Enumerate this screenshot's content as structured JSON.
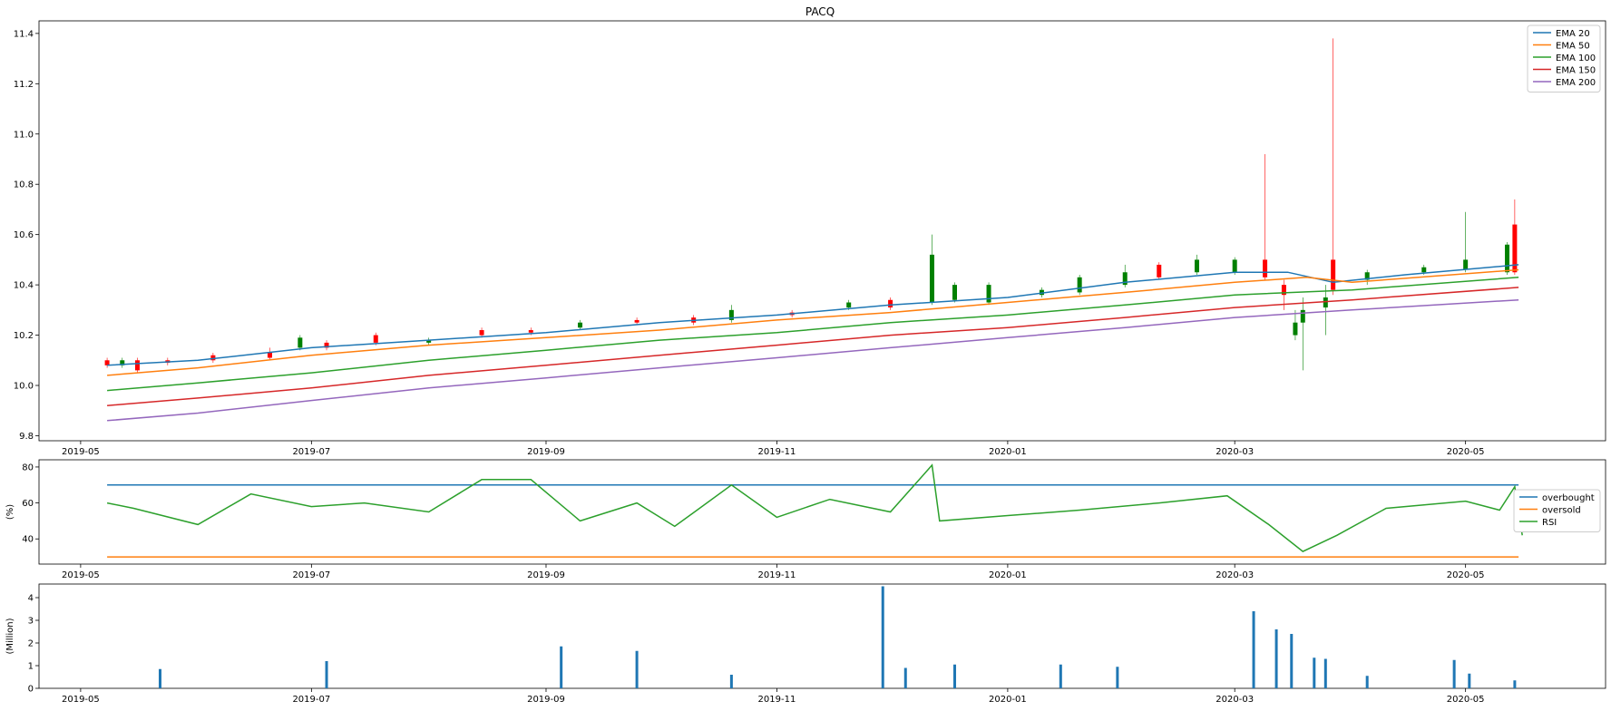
{
  "title": "PACQ",
  "colors": {
    "ema20": "#1f77b4",
    "ema50": "#ff7f0e",
    "ema100": "#2ca02c",
    "ema150": "#d62728",
    "ema200": "#9467bd",
    "overbought": "#1f77b4",
    "oversold": "#ff7f0e",
    "rsi": "#2ca02c",
    "up": "#008000",
    "down": "#ff0000",
    "volume": "#1f77b4"
  },
  "chart_data": [
    {
      "type": "candlestick",
      "title": "PACQ",
      "xlabel": "",
      "ylabel": "",
      "x_range": [
        "2019-04-20",
        "2020-06-07"
      ],
      "ylim": [
        9.78,
        11.45
      ],
      "x_ticks": [
        "2019-05",
        "2019-07",
        "2019-09",
        "2019-11",
        "2020-01",
        "2020-03",
        "2020-05"
      ],
      "y_ticks": [
        "9.8",
        "10.0",
        "10.2",
        "10.4",
        "10.6",
        "10.8",
        "11.0",
        "11.2",
        "11.4"
      ],
      "legend": "top-right",
      "series": [
        {
          "name": "EMA 20",
          "points": [
            [
              "2019-05-08",
              10.08
            ],
            [
              "2019-06-01",
              10.1
            ],
            [
              "2019-07-01",
              10.15
            ],
            [
              "2019-08-01",
              10.18
            ],
            [
              "2019-09-01",
              10.21
            ],
            [
              "2019-10-01",
              10.25
            ],
            [
              "2019-11-01",
              10.28
            ],
            [
              "2019-12-01",
              10.32
            ],
            [
              "2020-01-01",
              10.35
            ],
            [
              "2020-02-01",
              10.41
            ],
            [
              "2020-03-01",
              10.45
            ],
            [
              "2020-03-15",
              10.45
            ],
            [
              "2020-03-27",
              10.41
            ],
            [
              "2020-04-15",
              10.44
            ],
            [
              "2020-05-15",
              10.48
            ]
          ]
        },
        {
          "name": "EMA 50",
          "points": [
            [
              "2019-05-08",
              10.04
            ],
            [
              "2019-06-01",
              10.07
            ],
            [
              "2019-07-01",
              10.12
            ],
            [
              "2019-08-01",
              10.16
            ],
            [
              "2019-09-01",
              10.19
            ],
            [
              "2019-10-01",
              10.22
            ],
            [
              "2019-11-01",
              10.26
            ],
            [
              "2019-12-01",
              10.29
            ],
            [
              "2020-01-01",
              10.33
            ],
            [
              "2020-02-01",
              10.37
            ],
            [
              "2020-03-01",
              10.41
            ],
            [
              "2020-03-20",
              10.43
            ],
            [
              "2020-04-01",
              10.41
            ],
            [
              "2020-05-15",
              10.46
            ]
          ]
        },
        {
          "name": "EMA 100",
          "points": [
            [
              "2019-05-08",
              9.98
            ],
            [
              "2019-06-01",
              10.01
            ],
            [
              "2019-07-01",
              10.05
            ],
            [
              "2019-08-01",
              10.1
            ],
            [
              "2019-09-01",
              10.14
            ],
            [
              "2019-10-01",
              10.18
            ],
            [
              "2019-11-01",
              10.21
            ],
            [
              "2019-12-01",
              10.25
            ],
            [
              "2020-01-01",
              10.28
            ],
            [
              "2020-02-01",
              10.32
            ],
            [
              "2020-03-01",
              10.36
            ],
            [
              "2020-04-01",
              10.38
            ],
            [
              "2020-05-15",
              10.43
            ]
          ]
        },
        {
          "name": "EMA 150",
          "points": [
            [
              "2019-05-08",
              9.92
            ],
            [
              "2019-06-01",
              9.95
            ],
            [
              "2019-07-01",
              9.99
            ],
            [
              "2019-08-01",
              10.04
            ],
            [
              "2019-09-01",
              10.08
            ],
            [
              "2019-10-01",
              10.12
            ],
            [
              "2019-11-01",
              10.16
            ],
            [
              "2019-12-01",
              10.2
            ],
            [
              "2020-01-01",
              10.23
            ],
            [
              "2020-02-01",
              10.27
            ],
            [
              "2020-03-01",
              10.31
            ],
            [
              "2020-04-01",
              10.34
            ],
            [
              "2020-05-15",
              10.39
            ]
          ]
        },
        {
          "name": "EMA 200",
          "points": [
            [
              "2019-05-08",
              9.86
            ],
            [
              "2019-06-01",
              9.89
            ],
            [
              "2019-07-01",
              9.94
            ],
            [
              "2019-08-01",
              9.99
            ],
            [
              "2019-09-01",
              10.03
            ],
            [
              "2019-10-01",
              10.07
            ],
            [
              "2019-11-01",
              10.11
            ],
            [
              "2019-12-01",
              10.15
            ],
            [
              "2020-01-01",
              10.19
            ],
            [
              "2020-02-01",
              10.23
            ],
            [
              "2020-03-01",
              10.27
            ],
            [
              "2020-04-01",
              10.3
            ],
            [
              "2020-05-15",
              10.34
            ]
          ]
        }
      ],
      "candles": [
        [
          "2019-05-08",
          10.1,
          10.08,
          10.11,
          10.07
        ],
        [
          "2019-05-12",
          10.08,
          10.1,
          10.11,
          10.07
        ],
        [
          "2019-05-16",
          10.1,
          10.06,
          10.11,
          10.05
        ],
        [
          "2019-05-24",
          10.1,
          10.09,
          10.11,
          10.08
        ],
        [
          "2019-06-05",
          10.12,
          10.1,
          10.13,
          10.09
        ],
        [
          "2019-06-20",
          10.13,
          10.11,
          10.15,
          10.1
        ],
        [
          "2019-06-28",
          10.15,
          10.19,
          10.2,
          10.14
        ],
        [
          "2019-07-05",
          10.17,
          10.15,
          10.18,
          10.14
        ],
        [
          "2019-07-18",
          10.2,
          10.17,
          10.21,
          10.16
        ],
        [
          "2019-08-01",
          10.17,
          10.18,
          10.19,
          10.16
        ],
        [
          "2019-08-15",
          10.22,
          10.2,
          10.23,
          10.19
        ],
        [
          "2019-08-28",
          10.22,
          10.21,
          10.23,
          10.2
        ],
        [
          "2019-09-10",
          10.23,
          10.25,
          10.26,
          10.22
        ],
        [
          "2019-09-25",
          10.26,
          10.25,
          10.27,
          10.24
        ],
        [
          "2019-10-10",
          10.27,
          10.25,
          10.28,
          10.24
        ],
        [
          "2019-10-20",
          10.26,
          10.3,
          10.32,
          10.25
        ],
        [
          "2019-11-05",
          10.29,
          10.28,
          10.3,
          10.27
        ],
        [
          "2019-11-20",
          10.31,
          10.33,
          10.34,
          10.3
        ],
        [
          "2019-12-01",
          10.34,
          10.31,
          10.35,
          10.3
        ],
        [
          "2019-12-12",
          10.33,
          10.52,
          10.6,
          10.32
        ],
        [
          "2019-12-18",
          10.34,
          10.4,
          10.41,
          10.33
        ],
        [
          "2019-12-27",
          10.33,
          10.4,
          10.41,
          10.32
        ],
        [
          "2020-01-10",
          10.36,
          10.38,
          10.39,
          10.35
        ],
        [
          "2020-01-20",
          10.37,
          10.43,
          10.44,
          10.36
        ],
        [
          "2020-02-01",
          10.4,
          10.45,
          10.48,
          10.39
        ],
        [
          "2020-02-10",
          10.48,
          10.43,
          10.49,
          10.42
        ],
        [
          "2020-02-20",
          10.45,
          10.5,
          10.52,
          10.44
        ],
        [
          "2020-03-01",
          10.45,
          10.5,
          10.51,
          10.44
        ],
        [
          "2020-03-09",
          10.5,
          10.43,
          10.92,
          10.42
        ],
        [
          "2020-03-14",
          10.4,
          10.36,
          10.42,
          10.3
        ],
        [
          "2020-03-17",
          10.2,
          10.25,
          10.3,
          10.18
        ],
        [
          "2020-03-19",
          10.25,
          10.3,
          10.35,
          10.06
        ],
        [
          "2020-03-25",
          10.31,
          10.35,
          10.4,
          10.2
        ],
        [
          "2020-03-27",
          10.5,
          10.38,
          11.38,
          10.36
        ],
        [
          "2020-04-05",
          10.42,
          10.45,
          10.46,
          10.4
        ],
        [
          "2020-04-20",
          10.45,
          10.47,
          10.48,
          10.44
        ],
        [
          "2020-05-01",
          10.46,
          10.5,
          10.69,
          10.45
        ],
        [
          "2020-05-12",
          10.45,
          10.56,
          10.57,
          10.44
        ],
        [
          "2020-05-14",
          10.64,
          10.45,
          10.74,
          10.44
        ]
      ]
    },
    {
      "type": "line",
      "title": "",
      "xlabel": "",
      "ylabel": "(%)",
      "ylim": [
        26,
        84
      ],
      "y_ticks": [
        "40",
        "60",
        "80"
      ],
      "legend": "right",
      "series": [
        {
          "name": "overbought",
          "points": [
            [
              "2019-05-08",
              70
            ],
            [
              "2020-05-15",
              70
            ]
          ]
        },
        {
          "name": "oversold",
          "points": [
            [
              "2019-05-08",
              30
            ],
            [
              "2020-05-15",
              30
            ]
          ]
        },
        {
          "name": "RSI",
          "points": [
            [
              "2019-05-08",
              60
            ],
            [
              "2019-05-15",
              57
            ],
            [
              "2019-06-01",
              48
            ],
            [
              "2019-06-15",
              65
            ],
            [
              "2019-07-01",
              58
            ],
            [
              "2019-07-15",
              60
            ],
            [
              "2019-08-01",
              55
            ],
            [
              "2019-08-15",
              73
            ],
            [
              "2019-08-28",
              73
            ],
            [
              "2019-09-10",
              50
            ],
            [
              "2019-09-25",
              60
            ],
            [
              "2019-10-05",
              47
            ],
            [
              "2019-10-20",
              70
            ],
            [
              "2019-11-01",
              52
            ],
            [
              "2019-11-15",
              62
            ],
            [
              "2019-12-01",
              55
            ],
            [
              "2019-12-12",
              81
            ],
            [
              "2019-12-14",
              50
            ],
            [
              "2020-01-01",
              53
            ],
            [
              "2020-01-20",
              56
            ],
            [
              "2020-02-10",
              60
            ],
            [
              "2020-02-28",
              64
            ],
            [
              "2020-03-10",
              48
            ],
            [
              "2020-03-19",
              33
            ],
            [
              "2020-03-28",
              42
            ],
            [
              "2020-04-10",
              57
            ],
            [
              "2020-05-01",
              61
            ],
            [
              "2020-05-10",
              56
            ],
            [
              "2020-05-14",
              69
            ],
            [
              "2020-05-16",
              42
            ]
          ]
        }
      ]
    },
    {
      "type": "bar",
      "title": "",
      "xlabel": "",
      "ylabel": "(Million)",
      "ylim": [
        0,
        4.6
      ],
      "y_ticks": [
        "0",
        "1",
        "2",
        "3",
        "4"
      ],
      "points": [
        [
          "2019-05-22",
          0.85
        ],
        [
          "2019-07-05",
          1.2
        ],
        [
          "2019-09-05",
          1.85
        ],
        [
          "2019-09-25",
          1.65
        ],
        [
          "2019-10-20",
          0.6
        ],
        [
          "2019-11-29",
          4.5
        ],
        [
          "2019-12-05",
          0.9
        ],
        [
          "2019-12-18",
          1.05
        ],
        [
          "2020-01-15",
          1.05
        ],
        [
          "2020-01-30",
          0.95
        ],
        [
          "2020-03-06",
          3.4
        ],
        [
          "2020-03-12",
          2.6
        ],
        [
          "2020-03-16",
          2.4
        ],
        [
          "2020-03-22",
          1.35
        ],
        [
          "2020-03-25",
          1.3
        ],
        [
          "2020-04-05",
          0.55
        ],
        [
          "2020-04-28",
          1.25
        ],
        [
          "2020-05-02",
          0.65
        ],
        [
          "2020-05-14",
          0.35
        ]
      ]
    }
  ]
}
